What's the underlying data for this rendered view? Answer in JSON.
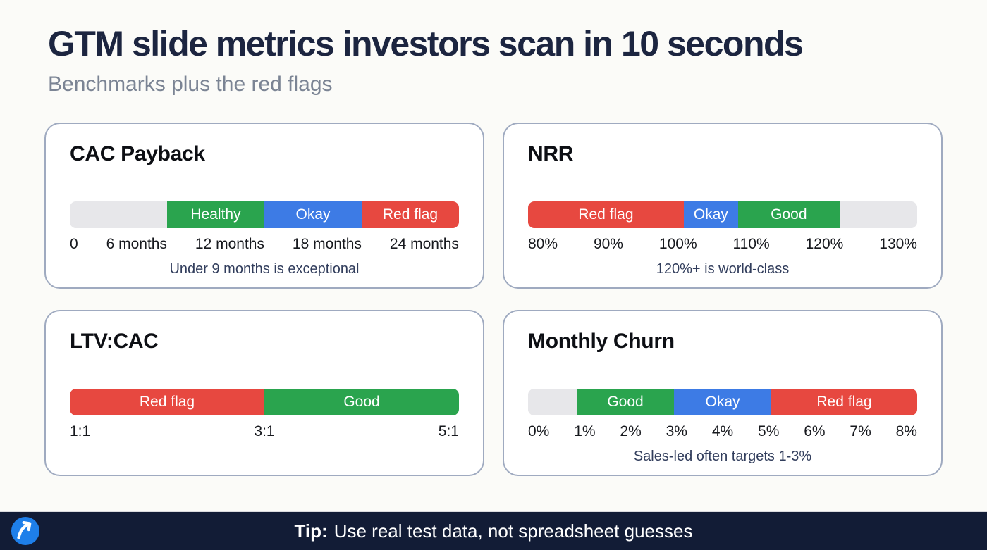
{
  "header": {
    "title": "GTM slide metrics investors scan in 10 seconds",
    "subtitle": "Benchmarks plus the red flags"
  },
  "footer": {
    "tip_label": "Tip:",
    "tip_text": "Use real test data, not spreadsheet guesses",
    "logo_icon": "trending-up-arrow-icon"
  },
  "colors": {
    "page_bg": "#FBFBF8",
    "heading": "#1C2540",
    "subtitle": "#7B8494",
    "card_border": "#9FAAC0",
    "caption": "#313D5C",
    "footer_bg": "#121C36",
    "good_green": "#2AA44E",
    "okay_blue": "#3D7BE5",
    "red_flag_red": "#E74840",
    "neutral_gray": "#E7E7EA",
    "logo_blue": "#1E7FEA"
  },
  "chart_data": [
    {
      "type": "bar",
      "subtype": "benchmark-scale",
      "title": "CAC Payback",
      "axis_range": [
        0,
        24
      ],
      "axis_unit": "months",
      "axis_ticks": [
        "0",
        "6 months",
        "12 months",
        "18 months",
        "24 months"
      ],
      "zones": [
        {
          "label": "",
          "from": 0,
          "to": 6,
          "color": "#E7E7EA"
        },
        {
          "label": "Healthy",
          "from": 6,
          "to": 12,
          "color": "#2AA44E"
        },
        {
          "label": "Okay",
          "from": 12,
          "to": 18,
          "color": "#3D7BE5"
        },
        {
          "label": "Red flag",
          "from": 18,
          "to": 24,
          "color": "#E74840"
        }
      ],
      "annotation": "Under 9 months is exceptional"
    },
    {
      "type": "bar",
      "subtype": "benchmark-scale",
      "title": "NRR",
      "axis_range": [
        80,
        130
      ],
      "axis_unit": "percent",
      "axis_ticks": [
        "80%",
        "90%",
        "100%",
        "110%",
        "120%",
        "130%"
      ],
      "zones": [
        {
          "label": "Red flag",
          "from": 80,
          "to": 100,
          "color": "#E74840"
        },
        {
          "label": "Okay",
          "from": 100,
          "to": 107,
          "color": "#3D7BE5"
        },
        {
          "label": "Good",
          "from": 107,
          "to": 120,
          "color": "#2AA44E"
        },
        {
          "label": "",
          "from": 120,
          "to": 130,
          "color": "#E7E7EA"
        }
      ],
      "annotation": "120%+ is world-class"
    },
    {
      "type": "bar",
      "subtype": "benchmark-scale",
      "title": "LTV:CAC",
      "axis_range": [
        1,
        5
      ],
      "axis_unit": "ratio",
      "axis_ticks": [
        "1:1",
        "3:1",
        "5:1"
      ],
      "zones": [
        {
          "label": "Red flag",
          "from": 1,
          "to": 3,
          "color": "#E74840"
        },
        {
          "label": "Good",
          "from": 3,
          "to": 5,
          "color": "#2AA44E"
        }
      ],
      "annotation": ""
    },
    {
      "type": "bar",
      "subtype": "benchmark-scale",
      "title": "Monthly Churn",
      "axis_range": [
        0,
        8
      ],
      "axis_unit": "percent",
      "axis_ticks": [
        "0%",
        "1%",
        "2%",
        "3%",
        "4%",
        "5%",
        "6%",
        "7%",
        "8%"
      ],
      "zones": [
        {
          "label": "",
          "from": 0,
          "to": 1,
          "color": "#E7E7EA"
        },
        {
          "label": "Good",
          "from": 1,
          "to": 3,
          "color": "#2AA44E"
        },
        {
          "label": "Okay",
          "from": 3,
          "to": 5,
          "color": "#3D7BE5"
        },
        {
          "label": "Red flag",
          "from": 5,
          "to": 8,
          "color": "#E74840"
        }
      ],
      "annotation": "Sales-led often targets 1-3%"
    }
  ]
}
